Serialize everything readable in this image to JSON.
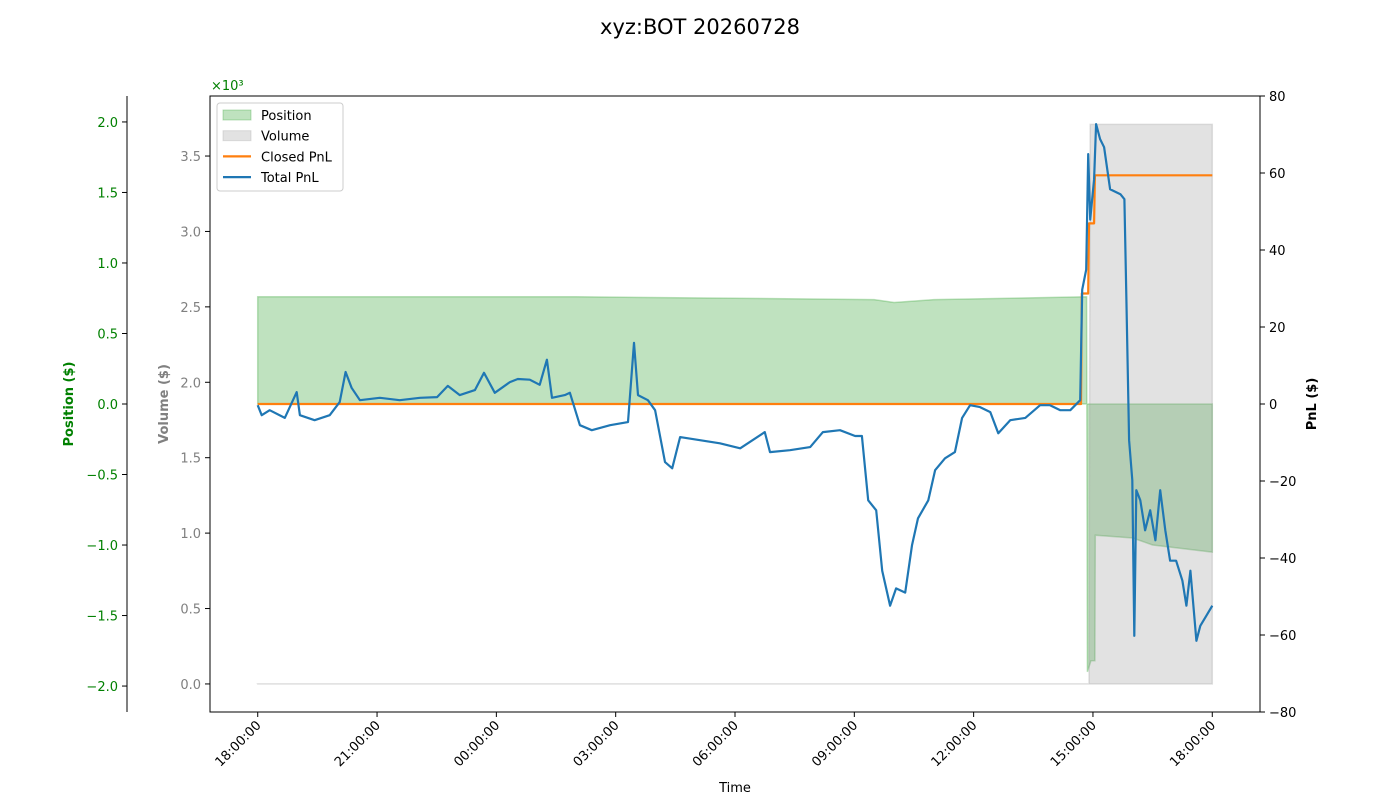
{
  "chart_data": {
    "type": "line",
    "title": "xyz:BOT 20260728",
    "xlabel": "Time",
    "ylabel": "Volume ($)",
    "y_offset_label": "×10³",
    "y2label": "PnL ($)",
    "y3label": "Position ($)",
    "ycolor": "#808080",
    "y2color": "#000000",
    "y3color": "#008000",
    "legend": "upper left",
    "xlim": [
      -1.2,
      25.2
    ],
    "xticks": [
      {
        "value": 0,
        "label": "18:00:00"
      },
      {
        "value": 3,
        "label": "21:00:00"
      },
      {
        "value": 6,
        "label": "00:00:00"
      },
      {
        "value": 9,
        "label": "03:00:00"
      },
      {
        "value": 12,
        "label": "06:00:00"
      },
      {
        "value": 15,
        "label": "09:00:00"
      },
      {
        "value": 18,
        "label": "12:00:00"
      },
      {
        "value": 21,
        "label": "15:00:00"
      },
      {
        "value": 24,
        "label": "18:00:00"
      }
    ],
    "ylim": [
      -0.186,
      3.898
    ],
    "yticks": [
      {
        "value": 0,
        "label": "0.0"
      },
      0.5,
      {
        "value": 1,
        "label": "1.0"
      },
      1.5,
      {
        "value": 2,
        "label": "2.0"
      },
      2.5,
      {
        "value": 3,
        "label": "3.0"
      },
      3.5
    ],
    "y2lim": [
      -80,
      80
    ],
    "y2ticks": [
      {
        "value": -80,
        "label": "−80"
      },
      {
        "value": -60,
        "label": "−60"
      },
      {
        "value": -40,
        "label": "−40"
      },
      {
        "value": -20,
        "label": "−20"
      },
      0,
      20,
      40,
      60,
      80
    ],
    "y3lim": [
      -2.184,
      2.184
    ],
    "y3ticks": [
      {
        "value": -2,
        "label": "−2.0"
      },
      {
        "value": -1.5,
        "label": "−1.5"
      },
      {
        "value": -1,
        "label": "−1.0"
      },
      {
        "value": -0.5,
        "label": "−0.5"
      },
      {
        "value": 0,
        "label": "0.0"
      },
      0.5,
      {
        "value": 1,
        "label": "1.0"
      },
      1.5,
      {
        "value": 2,
        "label": "2.0"
      }
    ],
    "series": [
      {
        "name": "Position",
        "kind": "area",
        "axis": "y3",
        "color": "#2ca02c",
        "x": [
          0,
          8,
          15.5,
          16,
          17,
          20.84,
          20.86,
          20.95,
          21.05,
          21.06,
          22,
          22.5,
          24
        ],
        "values": [
          0.76,
          0.76,
          0.74,
          0.72,
          0.74,
          0.76,
          -1.9,
          -1.82,
          -1.82,
          -0.93,
          -0.95,
          -1.0,
          -1.05
        ]
      },
      {
        "name": "Volume",
        "kind": "area",
        "axis": "y",
        "color": "#a0a0a0",
        "x": [
          0,
          20.9,
          20.93,
          24
        ],
        "values": [
          0,
          0,
          3.71,
          3.71
        ]
      },
      {
        "name": "Closed PnL",
        "kind": "line",
        "axis": "y2",
        "color": "#ff7f0e",
        "x": [
          0,
          20.7,
          20.72,
          20.88,
          20.9,
          21.03,
          21.05,
          24
        ],
        "values": [
          0,
          0,
          28.7,
          28.7,
          46.9,
          46.9,
          59.4,
          59.4
        ]
      },
      {
        "name": "Total PnL",
        "kind": "line",
        "axis": "y2",
        "color": "#1f77b4",
        "x": [
          0,
          0.1,
          0.3,
          0.68,
          0.98,
          1.06,
          1.43,
          1.81,
          2.06,
          2.21,
          2.36,
          2.57,
          3.07,
          3.57,
          4.08,
          4.51,
          4.78,
          5.08,
          5.46,
          5.69,
          5.96,
          6.34,
          6.54,
          6.84,
          7.09,
          7.27,
          7.4,
          7.72,
          7.85,
          8.1,
          8.4,
          8.86,
          9.31,
          9.46,
          9.56,
          9.81,
          9.99,
          10.24,
          10.42,
          10.62,
          11.12,
          11.62,
          12.13,
          12.75,
          12.88,
          13.38,
          13.89,
          14.21,
          14.64,
          15.02,
          15.19,
          15.35,
          15.55,
          15.7,
          15.9,
          16.05,
          16.28,
          16.45,
          16.6,
          16.86,
          17.03,
          17.28,
          17.53,
          17.71,
          17.91,
          18.16,
          18.42,
          18.62,
          18.92,
          19.3,
          19.67,
          19.92,
          20.18,
          20.43,
          20.68,
          20.73,
          20.83,
          20.88,
          20.93,
          21.03,
          21.08,
          21.18,
          21.28,
          21.43,
          21.69,
          21.79,
          21.84,
          21.91,
          21.99,
          22.04,
          22.09,
          22.19,
          22.31,
          22.44,
          22.57,
          22.69,
          22.82,
          22.94,
          23.09,
          23.25,
          23.35,
          23.45,
          23.6,
          23.7,
          23.85,
          24.0
        ],
        "values": [
          -0.3,
          -2.9,
          -1.6,
          -3.6,
          3.1,
          -2.9,
          -4.2,
          -2.9,
          0.5,
          8.3,
          4.2,
          1.0,
          1.6,
          1.0,
          1.6,
          1.8,
          4.7,
          2.3,
          3.6,
          8.1,
          2.9,
          5.7,
          6.5,
          6.3,
          5.0,
          11.5,
          1.6,
          2.3,
          2.9,
          -5.5,
          -6.8,
          -5.5,
          -4.7,
          15.9,
          2.3,
          1.0,
          -1.6,
          -15.1,
          -16.7,
          -8.6,
          -9.4,
          -10.2,
          -11.5,
          -7.3,
          -12.5,
          -12.0,
          -11.2,
          -7.3,
          -6.8,
          -8.3,
          -8.3,
          -25.0,
          -27.6,
          -43.3,
          -52.4,
          -47.9,
          -49.0,
          -36.7,
          -29.7,
          -25.0,
          -17.2,
          -14.1,
          -12.5,
          -3.6,
          -0.3,
          -0.8,
          -2.1,
          -7.6,
          -4.2,
          -3.6,
          -0.3,
          -0.3,
          -1.6,
          -1.6,
          1.0,
          29.7,
          34.9,
          64.9,
          47.9,
          58.4,
          72.7,
          68.8,
          66.7,
          55.8,
          54.5,
          53.2,
          27.1,
          -9.4,
          -19.8,
          -60.2,
          -22.4,
          -25.0,
          -32.8,
          -27.6,
          -35.4,
          -22.4,
          -32.8,
          -40.7,
          -40.7,
          -45.9,
          -52.4,
          -43.3,
          -61.5,
          -57.6,
          -55.0,
          -52.4
        ]
      }
    ]
  }
}
